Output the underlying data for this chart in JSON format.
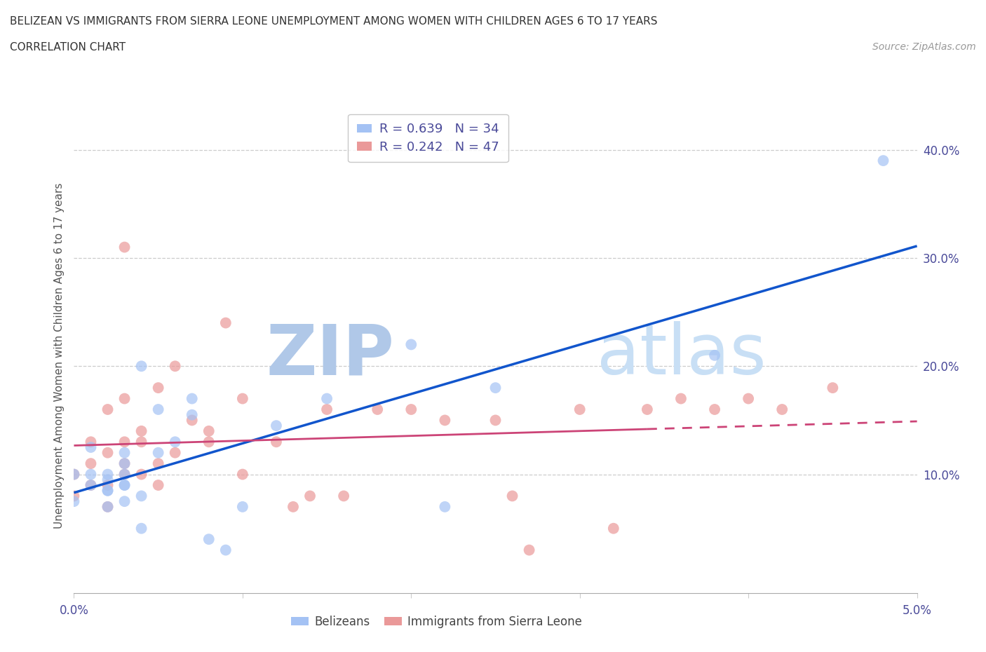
{
  "title_line1": "BELIZEAN VS IMMIGRANTS FROM SIERRA LEONE UNEMPLOYMENT AMONG WOMEN WITH CHILDREN AGES 6 TO 17 YEARS",
  "title_line2": "CORRELATION CHART",
  "source_text": "Source: ZipAtlas.com",
  "ylabel": "Unemployment Among Women with Children Ages 6 to 17 years",
  "xlim": [
    0.0,
    0.05
  ],
  "ylim": [
    -0.01,
    0.43
  ],
  "xticks": [
    0.0,
    0.01,
    0.02,
    0.03,
    0.04,
    0.05
  ],
  "xtick_labels": [
    "0.0%",
    "",
    "",
    "",
    "",
    "5.0%"
  ],
  "yticks_right": [
    0.0,
    0.1,
    0.2,
    0.3,
    0.4
  ],
  "ytick_labels_right": [
    "",
    "10.0%",
    "20.0%",
    "30.0%",
    "40.0%"
  ],
  "color_blue": "#a4c2f4",
  "color_blue_line": "#1155cc",
  "color_pink": "#ea9999",
  "color_pink_line": "#cc4477",
  "color_watermark_dark": "#b0c8e8",
  "color_watermark_light": "#c8dff5",
  "bg_color": "#ffffff",
  "grid_color": "#cccccc",
  "text_color": "#4a4a99",
  "title_color": "#333333",
  "belizeans_x": [
    0.0,
    0.0,
    0.001,
    0.001,
    0.001,
    0.002,
    0.002,
    0.002,
    0.002,
    0.002,
    0.003,
    0.003,
    0.003,
    0.003,
    0.003,
    0.003,
    0.004,
    0.004,
    0.004,
    0.005,
    0.005,
    0.006,
    0.007,
    0.007,
    0.008,
    0.009,
    0.01,
    0.012,
    0.015,
    0.02,
    0.022,
    0.025,
    0.038,
    0.048
  ],
  "belizeans_y": [
    0.075,
    0.1,
    0.09,
    0.1,
    0.125,
    0.085,
    0.1,
    0.07,
    0.085,
    0.095,
    0.09,
    0.1,
    0.11,
    0.09,
    0.12,
    0.075,
    0.05,
    0.08,
    0.2,
    0.12,
    0.16,
    0.13,
    0.17,
    0.155,
    0.04,
    0.03,
    0.07,
    0.145,
    0.17,
    0.22,
    0.07,
    0.18,
    0.21,
    0.39
  ],
  "sierraleone_x": [
    0.0,
    0.0,
    0.001,
    0.001,
    0.001,
    0.002,
    0.002,
    0.002,
    0.002,
    0.003,
    0.003,
    0.003,
    0.003,
    0.003,
    0.004,
    0.004,
    0.004,
    0.005,
    0.005,
    0.005,
    0.006,
    0.006,
    0.007,
    0.008,
    0.008,
    0.009,
    0.01,
    0.01,
    0.012,
    0.013,
    0.014,
    0.015,
    0.016,
    0.018,
    0.02,
    0.022,
    0.025,
    0.026,
    0.027,
    0.03,
    0.032,
    0.034,
    0.036,
    0.038,
    0.04,
    0.042,
    0.045
  ],
  "sierraleone_y": [
    0.08,
    0.1,
    0.09,
    0.11,
    0.13,
    0.07,
    0.09,
    0.12,
    0.16,
    0.1,
    0.11,
    0.13,
    0.17,
    0.31,
    0.1,
    0.13,
    0.14,
    0.09,
    0.11,
    0.18,
    0.12,
    0.2,
    0.15,
    0.13,
    0.14,
    0.24,
    0.1,
    0.17,
    0.13,
    0.07,
    0.08,
    0.16,
    0.08,
    0.16,
    0.16,
    0.15,
    0.15,
    0.08,
    0.03,
    0.16,
    0.05,
    0.16,
    0.17,
    0.16,
    0.17,
    0.16,
    0.18
  ]
}
